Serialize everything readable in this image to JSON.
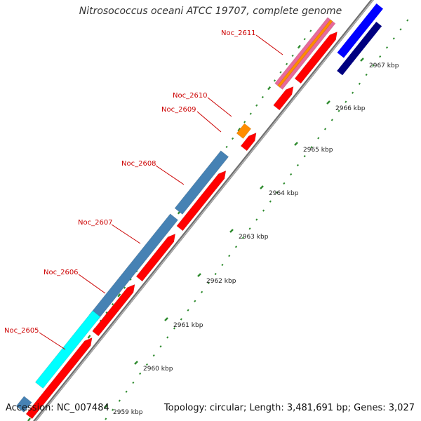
{
  "title": "Nitrosococcus oceani ATCC 19707, complete genome",
  "accession": "Accession: NC_007484",
  "summary": "Topology: circular; Length: 3,481,691 bp; Genes: 3,027",
  "colors": {
    "backbone": "#8c8c8c",
    "tick": "#2e8b2e",
    "label": "#cc0000",
    "gene_red": "#ff0000",
    "gene_steelblue": "#4682b4",
    "gene_cyan": "#00ffff",
    "gene_orange": "#ff8c00",
    "gene_blue": "#0000ff",
    "gene_navy": "#000080",
    "gene_pink": "#e8699a"
  },
  "ticks": [
    {
      "label": "2959 kbp",
      "pos": 2959
    },
    {
      "label": "2960 kbp",
      "pos": 2960
    },
    {
      "label": "2961 kbp",
      "pos": 2961
    },
    {
      "label": "2962 kbp",
      "pos": 2962
    },
    {
      "label": "2963 kbp",
      "pos": 2963
    },
    {
      "label": "2964 kbp",
      "pos": 2964
    },
    {
      "label": "2965 kbp",
      "pos": 2965
    },
    {
      "label": "2966 kbp",
      "pos": 2966
    },
    {
      "label": "2967 kbp",
      "pos": 2967
    }
  ],
  "gene_labels": [
    {
      "name": "Noc_2605"
    },
    {
      "name": "Noc_2606"
    },
    {
      "name": "Noc_2607"
    },
    {
      "name": "Noc_2608"
    },
    {
      "name": "Noc_2609"
    },
    {
      "name": "Noc_2610"
    },
    {
      "name": "Noc_2611"
    }
  ]
}
